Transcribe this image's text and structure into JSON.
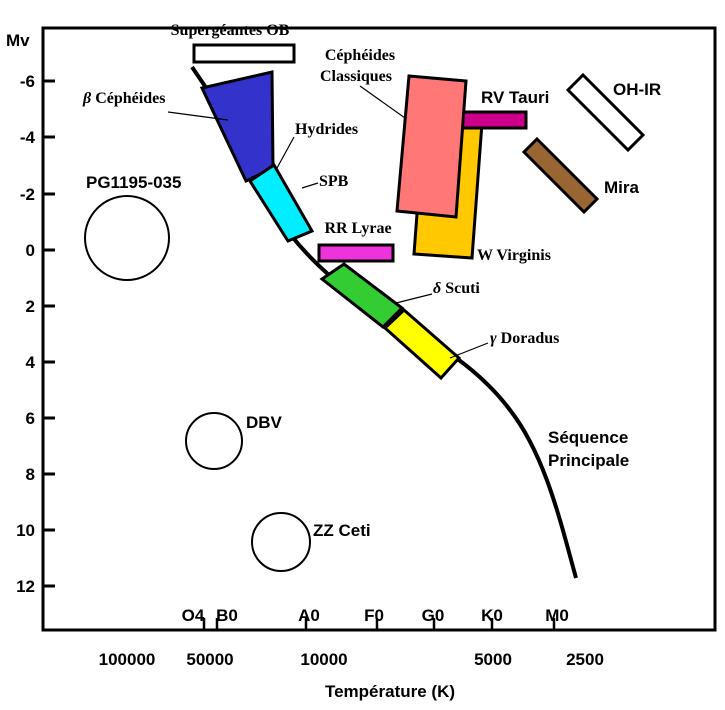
{
  "chart_data": {
    "type": "diagram",
    "title": "",
    "ylabel": "Mv",
    "xlabel": "Température (K)",
    "y_ticks": [
      "-6",
      "-4",
      "-2",
      "0",
      "2",
      "4",
      "6",
      "8",
      "10",
      "12"
    ],
    "temperature_ticks": [
      "100000",
      "50000",
      "10000",
      "5000",
      "2500"
    ],
    "spectral_types": [
      "O4",
      "B0",
      "A0",
      "F0",
      "G0",
      "K0",
      "M0"
    ],
    "main_sequence_label": [
      "Séquence",
      "Principale"
    ],
    "regions": [
      {
        "id": "supergeantes",
        "label": "Supergéantes OB",
        "color": "#ffffff"
      },
      {
        "id": "beta-cepheides",
        "greek": "β",
        "label": " Céphéides",
        "color": "#3333cc"
      },
      {
        "id": "hydrides",
        "label": "Hydrides",
        "color": ""
      },
      {
        "id": "spb",
        "label": "SPB",
        "color": "#00eeff"
      },
      {
        "id": "rr-lyrae",
        "label": "RR Lyrae",
        "color": "#ee33dd"
      },
      {
        "id": "delta-scuti",
        "greek": "δ",
        "label": " Scuti",
        "color": "#33cc33"
      },
      {
        "id": "gamma-doradus",
        "greek": "γ",
        "label": " Doradus",
        "color": "#ffff00"
      },
      {
        "id": "cepheides-classiques",
        "label": [
          "Céphéides",
          "Classiques"
        ],
        "color": "#ff7777"
      },
      {
        "id": "w-virginis",
        "label": "W Virginis",
        "color": "#ffc800"
      },
      {
        "id": "rv-tauri",
        "label": "RV Tauri",
        "color": "#cc0088"
      },
      {
        "id": "oh-ir",
        "label": "OH-IR",
        "color": "#ffffff"
      },
      {
        "id": "mira",
        "label": "Mira",
        "color": "#996633"
      },
      {
        "id": "pg1195",
        "label": "PG1195-035",
        "color": "#ffffff"
      },
      {
        "id": "dbv",
        "label": "DBV",
        "color": "#ffffff"
      },
      {
        "id": "zz-ceti",
        "label": "ZZ Ceti",
        "color": "#ffffff"
      }
    ]
  }
}
